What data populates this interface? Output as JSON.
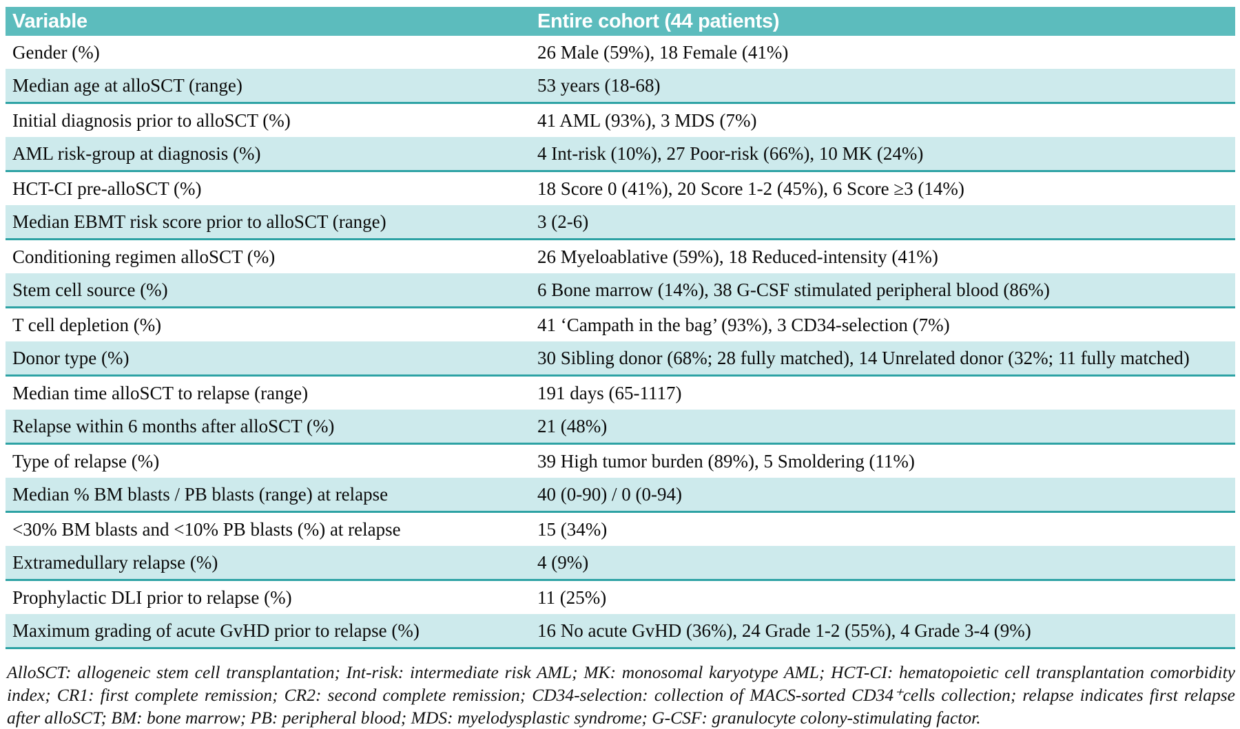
{
  "colors": {
    "header_bg": "#5cbcbd",
    "shaded_bg": "#cdeaec",
    "row_border": "#2da2a4"
  },
  "table": {
    "header": {
      "variable": "Variable",
      "cohort": "Entire cohort (44 patients)"
    },
    "rows": [
      {
        "variable": "Gender (%)",
        "value": "26 Male (59%), 18 Female (41%)",
        "shaded": false
      },
      {
        "variable": "Median age at alloSCT (range)",
        "value": "53 years (18-68)",
        "shaded": true
      },
      {
        "variable": "Initial diagnosis prior to alloSCT (%)",
        "value": "41 AML (93%), 3 MDS (7%)",
        "shaded": false
      },
      {
        "variable": "AML risk-group at diagnosis (%)",
        "value": "4 Int-risk (10%), 27 Poor-risk (66%), 10 MK (24%)",
        "shaded": true
      },
      {
        "variable": "HCT-CI pre-alloSCT (%)",
        "value": "18 Score 0 (41%), 20 Score 1-2 (45%), 6 Score ≥3 (14%)",
        "shaded": false
      },
      {
        "variable": "Median EBMT risk score prior to alloSCT (range)",
        "value": "3 (2-6)",
        "shaded": true
      },
      {
        "variable": "Conditioning regimen alloSCT (%)",
        "value": "26 Myeloablative (59%), 18 Reduced-intensity (41%)",
        "shaded": false
      },
      {
        "variable": "Stem cell source (%)",
        "value": "6 Bone marrow (14%), 38 G-CSF stimulated peripheral blood (86%)",
        "shaded": true
      },
      {
        "variable": "T cell depletion (%)",
        "value": "41 ‘Campath in the bag’ (93%), 3 CD34-selection (7%)",
        "shaded": false
      },
      {
        "variable": "Donor type (%)",
        "value": "30 Sibling donor (68%; 28 fully matched), 14 Unrelated donor (32%; 11 fully matched)",
        "shaded": true
      },
      {
        "variable": "Median time alloSCT to relapse (range)",
        "value": "191 days (65-1117)",
        "shaded": false
      },
      {
        "variable": "Relapse within 6 months after alloSCT (%)",
        "value": "21 (48%)",
        "shaded": true
      },
      {
        "variable": "Type of relapse  (%)",
        "value": "39 High tumor burden (89%), 5 Smoldering (11%)",
        "shaded": false
      },
      {
        "variable": "Median % BM blasts / PB blasts (range) at relapse",
        "value": "40 (0-90) / 0 (0-94)",
        "shaded": true
      },
      {
        "variable": "<30% BM blasts and <10% PB blasts (%) at relapse",
        "value": "15 (34%)",
        "shaded": false
      },
      {
        "variable": "Extramedullary relapse (%)",
        "value": "4 (9%)",
        "shaded": true
      },
      {
        "variable": "Prophylactic DLI prior to relapse (%)",
        "value": "11 (25%)",
        "shaded": false
      },
      {
        "variable": "Maximum grading of acute GvHD prior to relapse (%)",
        "value": "16 No acute GvHD (36%), 24 Grade 1-2 (55%), 4 Grade 3-4 (9%)",
        "shaded": true
      }
    ]
  },
  "footnote": "AlloSCT: allogeneic stem cell transplantation; Int-risk: intermediate risk AML; MK: monosomal karyotype AML; HCT-CI: hematopoietic cell transplantation comorbidity index; CR1: first complete remission; CR2: second complete remission; CD34-selection: collection of MACS-sorted CD34⁺cells collection; relapse indicates first relapse after alloSCT; BM: bone marrow; PB: peripheral blood; MDS: myelodysplastic syndrome; G-CSF: granulocyte colony-stimulating factor."
}
